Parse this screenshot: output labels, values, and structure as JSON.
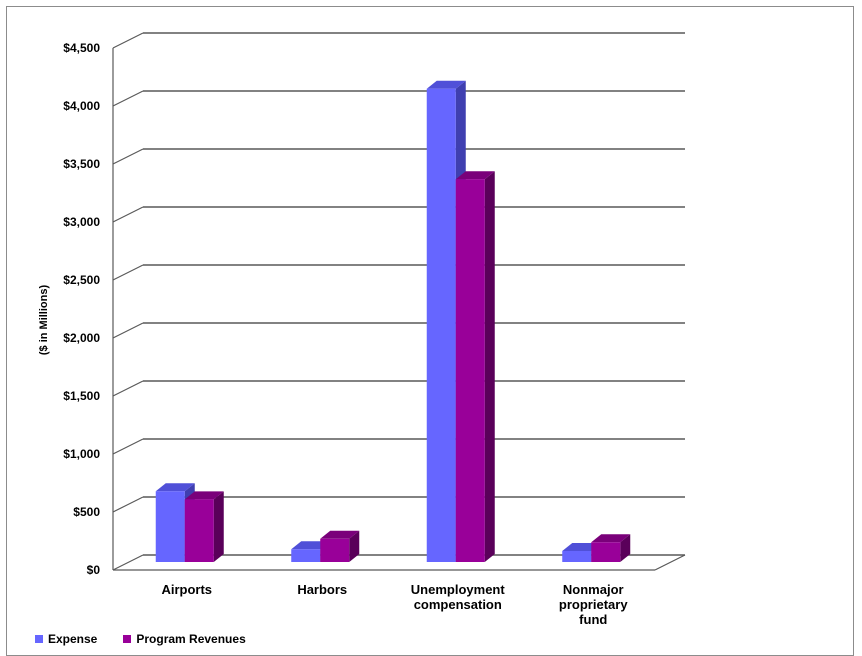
{
  "chart_data": {
    "type": "bar",
    "title": "",
    "xlabel": "",
    "ylabel": "($ in Millions)",
    "categories": [
      [
        "Airports"
      ],
      [
        "Harbors"
      ],
      [
        "Unemployment",
        "compensation"
      ],
      [
        "Nonmajor",
        "proprietary",
        "fund"
      ]
    ],
    "series": [
      {
        "name": "Expense",
        "values": [
          610,
          110,
          4080,
          95
        ],
        "color": "#6666ff",
        "side_color": "#3f3fb0",
        "top_color": "#5050d8"
      },
      {
        "name": "Program Revenues",
        "values": [
          540,
          200,
          3300,
          170
        ],
        "color": "#990099",
        "side_color": "#5a005a",
        "top_color": "#7a007a"
      }
    ],
    "ylim": [
      0,
      4500
    ],
    "yticks": [
      0,
      500,
      1000,
      1500,
      2000,
      2500,
      3000,
      3500,
      4000,
      4500
    ],
    "ytick_labels": [
      "$0",
      "$500",
      "$1,000",
      "$1,500",
      "$2,000",
      "$2,500",
      "$3,000",
      "$3,500",
      "$4,000",
      "$4,500"
    ],
    "grid": true,
    "legend_position": "bottom-left",
    "gridline_color": "#595959"
  }
}
